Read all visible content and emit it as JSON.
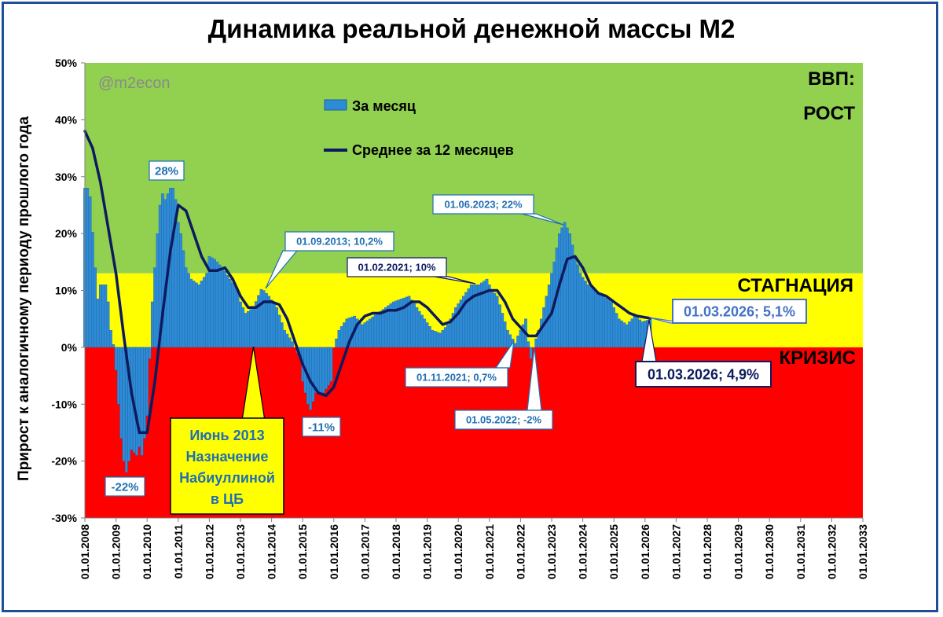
{
  "title": "Динамика реальной денежной массы М2",
  "watermark": "@m2econ",
  "chart_data": {
    "type": "bar",
    "title": "Динамика реальной денежной массы М2",
    "ylabel": "Прирост к аналогичному периоду прошлого года",
    "xlabel": "",
    "ylim": [
      -30,
      50
    ],
    "yticks": [
      "-30%",
      "-20%",
      "-10%",
      "0%",
      "10%",
      "20%",
      "30%",
      "40%",
      "50%"
    ],
    "xticks": [
      "01.01.2008",
      "01.01.2009",
      "01.01.2010",
      "01.01.2011",
      "01.01.2012",
      "01.01.2013",
      "01.01.2014",
      "01.01.2015",
      "01.01.2016",
      "01.01.2017",
      "01.01.2018",
      "01.01.2019",
      "01.01.2020",
      "01.01.2021",
      "01.01.2022",
      "01.01.2023",
      "01.01.2024",
      "01.01.2025",
      "01.01.2026",
      "01.01.2027",
      "01.01.2028",
      "01.01.2029",
      "01.01.2030",
      "01.01.2031",
      "01.01.2032",
      "01.01.2033"
    ],
    "x_start": "2008-01",
    "x_end": "2033-01",
    "zones": [
      {
        "name": "ВВП: РОСТ",
        "label_lines": [
          "ВВП:",
          "РОСТ"
        ],
        "from": 13,
        "to": 50,
        "color": "#92d050"
      },
      {
        "name": "СТАГНАЦИЯ",
        "label_lines": [
          "СТАГНАЦИЯ"
        ],
        "from": 0,
        "to": 13,
        "color": "#ffff00"
      },
      {
        "name": "КРИЗИС",
        "label_lines": [
          "КРИЗИС"
        ],
        "from": -30,
        "to": 0,
        "color": "#ff0000"
      }
    ],
    "series": [
      {
        "name": "За месяц",
        "type": "bar",
        "color": "#2e8bd6",
        "anchors": [
          [
            "2008-01",
            28
          ],
          [
            "2008-02",
            28
          ],
          [
            "2008-03",
            26.5
          ],
          [
            "2008-05",
            14
          ],
          [
            "2008-06",
            8.5
          ],
          [
            "2008-07",
            11
          ],
          [
            "2008-09",
            11
          ],
          [
            "2008-10",
            8
          ],
          [
            "2008-11",
            3
          ],
          [
            "2008-12",
            0.5
          ],
          [
            "2009-01",
            -4
          ],
          [
            "2009-02",
            -10
          ],
          [
            "2009-03",
            -16
          ],
          [
            "2009-04",
            -20
          ],
          [
            "2009-05",
            -22
          ],
          [
            "2009-06",
            -20
          ],
          [
            "2009-07",
            -18
          ],
          [
            "2009-08",
            -18.5
          ],
          [
            "2009-09",
            -19
          ],
          [
            "2009-10",
            -17.5
          ],
          [
            "2009-11",
            -19
          ],
          [
            "2009-12",
            -16
          ],
          [
            "2010-01",
            -12
          ],
          [
            "2010-02",
            -2
          ],
          [
            "2010-03",
            8
          ],
          [
            "2010-04",
            14
          ],
          [
            "2010-05",
            20
          ],
          [
            "2010-06",
            25
          ],
          [
            "2010-07",
            27
          ],
          [
            "2010-08",
            26
          ],
          [
            "2010-09",
            27
          ],
          [
            "2010-10",
            28
          ],
          [
            "2010-11",
            28
          ],
          [
            "2010-12",
            26
          ],
          [
            "2011-01",
            22
          ],
          [
            "2011-02",
            20
          ],
          [
            "2011-03",
            17
          ],
          [
            "2011-04",
            14
          ],
          [
            "2011-06",
            12
          ],
          [
            "2011-09",
            11
          ],
          [
            "2011-12",
            13
          ],
          [
            "2012-01",
            16
          ],
          [
            "2012-03",
            15.5
          ],
          [
            "2012-06",
            14
          ],
          [
            "2012-09",
            12
          ],
          [
            "2012-12",
            10
          ],
          [
            "2013-01",
            8
          ],
          [
            "2013-03",
            6
          ],
          [
            "2013-06",
            7
          ],
          [
            "2013-09",
            10.2
          ],
          [
            "2013-10",
            10
          ],
          [
            "2013-12",
            9
          ],
          [
            "2014-03",
            7
          ],
          [
            "2014-06",
            3
          ],
          [
            "2014-09",
            1
          ],
          [
            "2014-12",
            -2
          ],
          [
            "2015-01",
            -6
          ],
          [
            "2015-03",
            -10
          ],
          [
            "2015-04",
            -11
          ],
          [
            "2015-06",
            -8
          ],
          [
            "2015-09",
            -8
          ],
          [
            "2015-12",
            -6
          ],
          [
            "2016-01",
            0
          ],
          [
            "2016-03",
            3
          ],
          [
            "2016-06",
            5
          ],
          [
            "2016-09",
            5.5
          ],
          [
            "2016-12",
            4
          ],
          [
            "2017-03",
            5
          ],
          [
            "2017-06",
            6
          ],
          [
            "2017-09",
            7
          ],
          [
            "2017-12",
            8
          ],
          [
            "2018-03",
            8.5
          ],
          [
            "2018-06",
            9
          ],
          [
            "2018-09",
            7
          ],
          [
            "2018-12",
            5
          ],
          [
            "2019-03",
            3
          ],
          [
            "2019-06",
            2.5
          ],
          [
            "2019-09",
            4
          ],
          [
            "2019-12",
            7
          ],
          [
            "2020-03",
            9
          ],
          [
            "2020-06",
            11
          ],
          [
            "2020-09",
            11
          ],
          [
            "2020-12",
            12
          ],
          [
            "2021-02",
            10
          ],
          [
            "2021-04",
            9
          ],
          [
            "2021-06",
            6
          ],
          [
            "2021-08",
            3
          ],
          [
            "2021-11",
            0.7
          ],
          [
            "2021-12",
            2
          ],
          [
            "2022-02",
            4
          ],
          [
            "2022-03",
            5
          ],
          [
            "2022-04",
            1
          ],
          [
            "2022-05",
            -2
          ],
          [
            "2022-06",
            0
          ],
          [
            "2022-08",
            3
          ],
          [
            "2022-10",
            7
          ],
          [
            "2022-12",
            11
          ],
          [
            "2023-02",
            15
          ],
          [
            "2023-04",
            20
          ],
          [
            "2023-06",
            22
          ],
          [
            "2023-08",
            20
          ],
          [
            "2023-10",
            16
          ],
          [
            "2023-12",
            13
          ],
          [
            "2024-03",
            11
          ],
          [
            "2024-06",
            10
          ],
          [
            "2024-09",
            9
          ],
          [
            "2024-12",
            8
          ],
          [
            "2025-03",
            5
          ],
          [
            "2025-06",
            4
          ],
          [
            "2025-09",
            5.5
          ],
          [
            "2025-12",
            4.5
          ],
          [
            "2026-03",
            4.9
          ]
        ]
      },
      {
        "name": "Среднее за 12 месяцев",
        "type": "line",
        "color": "#0d1b5e",
        "anchors": [
          [
            "2008-01",
            38
          ],
          [
            "2008-04",
            35
          ],
          [
            "2008-07",
            29
          ],
          [
            "2008-10",
            21
          ],
          [
            "2009-01",
            13
          ],
          [
            "2009-04",
            2
          ],
          [
            "2009-07",
            -8
          ],
          [
            "2009-10",
            -15
          ],
          [
            "2010-01",
            -15
          ],
          [
            "2010-04",
            -6
          ],
          [
            "2010-07",
            6
          ],
          [
            "2010-10",
            17
          ],
          [
            "2011-01",
            25
          ],
          [
            "2011-04",
            24
          ],
          [
            "2011-07",
            20
          ],
          [
            "2011-10",
            16
          ],
          [
            "2012-01",
            13.5
          ],
          [
            "2012-04",
            13.5
          ],
          [
            "2012-07",
            14
          ],
          [
            "2012-10",
            12
          ],
          [
            "2013-01",
            9
          ],
          [
            "2013-04",
            7
          ],
          [
            "2013-07",
            7
          ],
          [
            "2013-10",
            8
          ],
          [
            "2014-01",
            8
          ],
          [
            "2014-04",
            7.5
          ],
          [
            "2014-07",
            5
          ],
          [
            "2014-10",
            1
          ],
          [
            "2015-01",
            -3
          ],
          [
            "2015-04",
            -6
          ],
          [
            "2015-07",
            -8
          ],
          [
            "2015-10",
            -8.5
          ],
          [
            "2016-01",
            -7
          ],
          [
            "2016-04",
            -3
          ],
          [
            "2016-07",
            1
          ],
          [
            "2016-10",
            4
          ],
          [
            "2017-01",
            5.5
          ],
          [
            "2017-04",
            6
          ],
          [
            "2017-07",
            6
          ],
          [
            "2017-10",
            6.5
          ],
          [
            "2018-01",
            6.5
          ],
          [
            "2018-04",
            7
          ],
          [
            "2018-07",
            8
          ],
          [
            "2018-10",
            8
          ],
          [
            "2019-01",
            7
          ],
          [
            "2019-04",
            5.5
          ],
          [
            "2019-07",
            4
          ],
          [
            "2019-10",
            4.5
          ],
          [
            "2020-01",
            6
          ],
          [
            "2020-04",
            8
          ],
          [
            "2020-07",
            9
          ],
          [
            "2020-10",
            9.5
          ],
          [
            "2021-01",
            10
          ],
          [
            "2021-04",
            10
          ],
          [
            "2021-07",
            8
          ],
          [
            "2021-10",
            5
          ],
          [
            "2022-01",
            3.5
          ],
          [
            "2022-04",
            2
          ],
          [
            "2022-07",
            2
          ],
          [
            "2022-10",
            4
          ],
          [
            "2023-01",
            6
          ],
          [
            "2023-04",
            11
          ],
          [
            "2023-07",
            15.5
          ],
          [
            "2023-10",
            16
          ],
          [
            "2024-01",
            14
          ],
          [
            "2024-04",
            11
          ],
          [
            "2024-07",
            9.5
          ],
          [
            "2024-10",
            9
          ],
          [
            "2025-01",
            8
          ],
          [
            "2025-04",
            7
          ],
          [
            "2025-07",
            6
          ],
          [
            "2025-10",
            5.5
          ],
          [
            "2026-03",
            5.1
          ]
        ]
      }
    ],
    "annotations": [
      {
        "text": "28%",
        "x": "2010-10",
        "y": 28
      },
      {
        "text": "-22%",
        "x": "2009-05",
        "y": -22
      },
      {
        "text": "01.09.2013; 10,2%",
        "x": "2013-09",
        "y": 10.2
      },
      {
        "text": "01.02.2021; 10%",
        "x": "2021-02",
        "y": 10
      },
      {
        "text": "01.06.2023; 22%",
        "x": "2023-06",
        "y": 22
      },
      {
        "text": "-11%",
        "x": "2015-04",
        "y": -11
      },
      {
        "text": "01.11.2021; 0,7%",
        "x": "2021-11",
        "y": 0.7
      },
      {
        "text": "01.05.2022; -2%",
        "x": "2022-05",
        "y": -2
      },
      {
        "text": "01.03.2026; 5,1%",
        "x": "2026-03",
        "y": 5.1
      },
      {
        "text": "01.03.2026; 4,9%",
        "x": "2026-03",
        "y": 4.9
      }
    ],
    "callout": {
      "lines": [
        "Июнь 2013",
        "Назначение",
        "Набиуллиной",
        "в ЦБ"
      ],
      "x": "2013-06"
    },
    "legend": {
      "placement": "top-left"
    },
    "grid": false
  }
}
